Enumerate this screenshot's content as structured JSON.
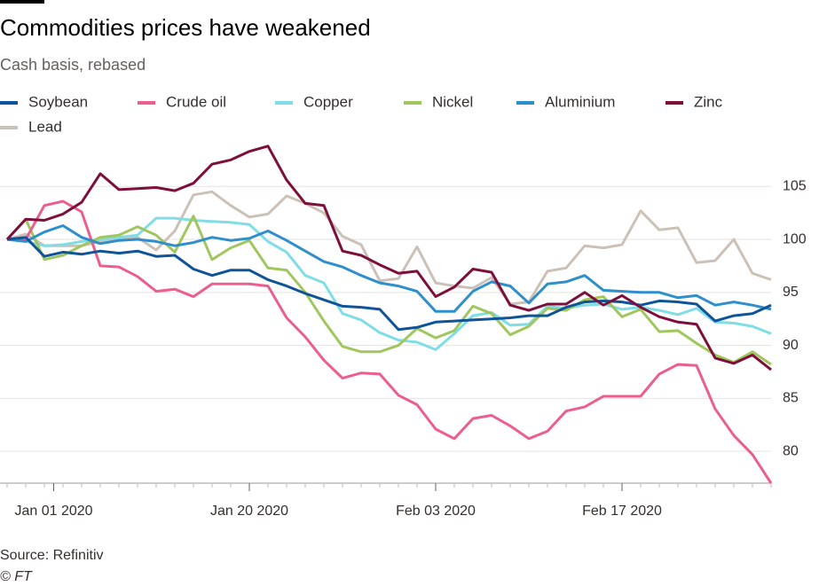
{
  "chart_data": {
    "type": "line",
    "title": "Commodities prices have weakened",
    "subtitle": "Cash basis, rebased",
    "source": "Source: Refinitiv",
    "credit": "© FT",
    "grid": true,
    "legend": "top",
    "x": [
      0,
      1,
      2,
      3,
      4,
      5,
      6,
      7,
      8,
      9,
      10,
      11,
      12,
      13,
      14,
      15,
      16,
      17,
      18,
      19,
      20,
      21,
      22,
      23,
      24,
      25,
      26,
      27,
      28,
      29,
      30,
      31,
      32,
      33,
      34,
      35,
      36,
      37,
      38,
      39,
      40,
      41
    ],
    "xlim": [
      0,
      41
    ],
    "xticks": [
      {
        "value": 2.5,
        "label": "Jan 01 2020"
      },
      {
        "value": 13,
        "label": "Jan 20 2020"
      },
      {
        "value": 23,
        "label": "Feb 03 2020"
      },
      {
        "value": 33,
        "label": "Feb 17 2020"
      }
    ],
    "ylim": [
      77,
      110
    ],
    "yticks": [
      80,
      85,
      90,
      95,
      100,
      105
    ],
    "series": [
      {
        "name": "Lead",
        "color": "#ccc1b7",
        "values": [
          100,
          100.5,
          99.4,
          99.4,
          99.4,
          99.8,
          100.0,
          100.2,
          99.0,
          100.8,
          104.2,
          104.5,
          103.2,
          102.1,
          102.4,
          104.1,
          103.4,
          102.5,
          100.3,
          99.5,
          96.1,
          96.3,
          99.3,
          95.9,
          95.6,
          95.4,
          96.4,
          93.9,
          94.1,
          97.0,
          97.3,
          99.4,
          99.2,
          99.5,
          102.7,
          100.9,
          101.1,
          97.8,
          98.0,
          100.0,
          96.8,
          96.2
        ]
      },
      {
        "name": "Copper",
        "color": "#7fdde6",
        "values": [
          100,
          99.8,
          99.4,
          99.5,
          99.8,
          100.0,
          100.2,
          100.4,
          102.0,
          102.0,
          101.8,
          101.7,
          101.6,
          101.4,
          99.8,
          98.8,
          96.6,
          95.9,
          93.0,
          92.4,
          91.2,
          90.5,
          90.3,
          89.6,
          91.1,
          92.8,
          93.1,
          91.9,
          92.0,
          93.7,
          93.5,
          93.8,
          93.9,
          93.4,
          93.6,
          93.3,
          92.9,
          93.5,
          92.2,
          92.1,
          91.8,
          91.1
        ]
      },
      {
        "name": "Nickel",
        "color": "#a0c75d",
        "values": [
          100,
          101.9,
          98.1,
          98.5,
          99.4,
          100.2,
          100.4,
          101.2,
          100.4,
          98.8,
          102.2,
          98.1,
          99.2,
          99.9,
          97.3,
          97.1,
          95.0,
          92.3,
          89.9,
          89.4,
          89.4,
          90.0,
          91.6,
          90.7,
          91.4,
          93.7,
          93.0,
          91.0,
          91.8,
          93.5,
          93.3,
          94.3,
          94.6,
          92.7,
          93.4,
          91.3,
          91.4,
          90.2,
          89.1,
          88.4,
          89.4,
          88.2
        ]
      },
      {
        "name": "Crude oil",
        "color": "#eb5e8d",
        "values": [
          100,
          100,
          103.2,
          103.6,
          102.6,
          97.5,
          97.4,
          96.5,
          95.1,
          95.3,
          94.6,
          95.8,
          95.8,
          95.8,
          95.6,
          92.6,
          90.8,
          88.6,
          86.9,
          87.4,
          87.3,
          85.3,
          84.4,
          82.1,
          81.2,
          83.1,
          83.4,
          82.4,
          81.2,
          81.9,
          83.8,
          84.2,
          85.2,
          85.2,
          85.2,
          87.3,
          88.2,
          88.1,
          84.0,
          81.5,
          79.7,
          77.0
        ]
      },
      {
        "name": "Aluminium",
        "color": "#2e8fcc",
        "values": [
          100,
          99.8,
          100.7,
          101.3,
          100.2,
          99.6,
          99.9,
          100.0,
          99.8,
          99.4,
          99.7,
          100.2,
          99.9,
          100.1,
          100.8,
          99.9,
          98.9,
          97.9,
          97.4,
          96.6,
          95.9,
          95.6,
          95.1,
          93.2,
          93.2,
          95.1,
          96.0,
          95.6,
          94.0,
          95.8,
          96.0,
          96.6,
          95.2,
          95.1,
          95.0,
          95.0,
          94.5,
          94.7,
          93.8,
          94.1,
          93.8,
          93.4
        ]
      },
      {
        "name": "Soybean",
        "color": "#0f5499",
        "values": [
          100,
          100.2,
          98.4,
          98.8,
          98.6,
          98.9,
          98.7,
          98.9,
          98.4,
          98.5,
          97.2,
          96.6,
          97.1,
          97.1,
          96.2,
          95.6,
          94.9,
          94.3,
          93.7,
          93.6,
          93.4,
          91.5,
          91.7,
          92.2,
          92.3,
          92.4,
          92.5,
          92.6,
          92.8,
          92.8,
          93.6,
          94.1,
          94.2,
          94.1,
          93.8,
          94.2,
          94.1,
          93.9,
          92.3,
          92.8,
          93.0,
          93.8
        ]
      },
      {
        "name": "Zinc",
        "color": "#7d0f3a",
        "values": [
          100,
          101.9,
          101.8,
          102.4,
          103.5,
          106.2,
          104.7,
          104.8,
          104.9,
          104.6,
          105.3,
          107.1,
          107.5,
          108.3,
          108.8,
          105.6,
          103.4,
          103.2,
          98.9,
          98.5,
          97.6,
          96.8,
          97.0,
          94.6,
          95.5,
          97.2,
          96.9,
          93.8,
          93.3,
          93.9,
          93.9,
          95.0,
          93.8,
          94.7,
          93.6,
          92.7,
          92.2,
          92.0,
          88.8,
          88.3,
          89.1,
          87.7
        ]
      }
    ]
  }
}
